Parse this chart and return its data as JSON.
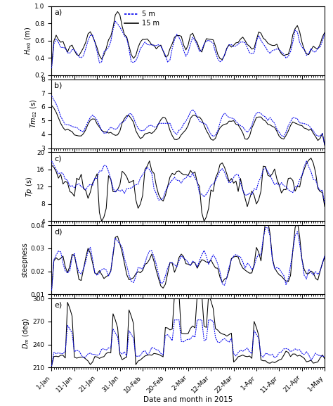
{
  "title": "",
  "xlabel": "Date and month in 2015",
  "panels": [
    {
      "label": "a)",
      "ylabel": "H_{m0} (m)",
      "ylim": [
        0.2,
        1.0
      ],
      "yticks": [
        0.2,
        0.4,
        0.6,
        0.8,
        1.0
      ]
    },
    {
      "label": "b)",
      "ylabel": "Tm_{02} (s)",
      "ylim": [
        3,
        8
      ],
      "yticks": [
        3,
        4,
        5,
        6,
        7,
        8
      ]
    },
    {
      "label": "c)",
      "ylabel": "Tp (s)",
      "ylim": [
        4,
        20
      ],
      "yticks": [
        4,
        8,
        12,
        16,
        20
      ]
    },
    {
      "label": "d)",
      "ylabel": "steepness",
      "ylim": [
        0.01,
        0.04
      ],
      "yticks": [
        0.01,
        0.02,
        0.03,
        0.04
      ]
    },
    {
      "label": "e)",
      "ylabel": "D_{m} (deg)",
      "ylim": [
        210,
        300
      ],
      "yticks": [
        210,
        240,
        270,
        300
      ]
    }
  ],
  "color_5m": "#0000ee",
  "color_15m": "#000000",
  "legend_5m": "5 m",
  "legend_15m": "15 m",
  "xtick_labels": [
    "1-Jan",
    "11-Jan",
    "21-Jan",
    "31-Jan",
    "10-Feb",
    "20-Feb",
    "2-Mar",
    "12-Mar",
    "22-Mar",
    "1-Apr",
    "11-Apr",
    "21-Apr",
    "1-May"
  ],
  "figsize": [
    4.74,
    5.77
  ],
  "dpi": 100
}
